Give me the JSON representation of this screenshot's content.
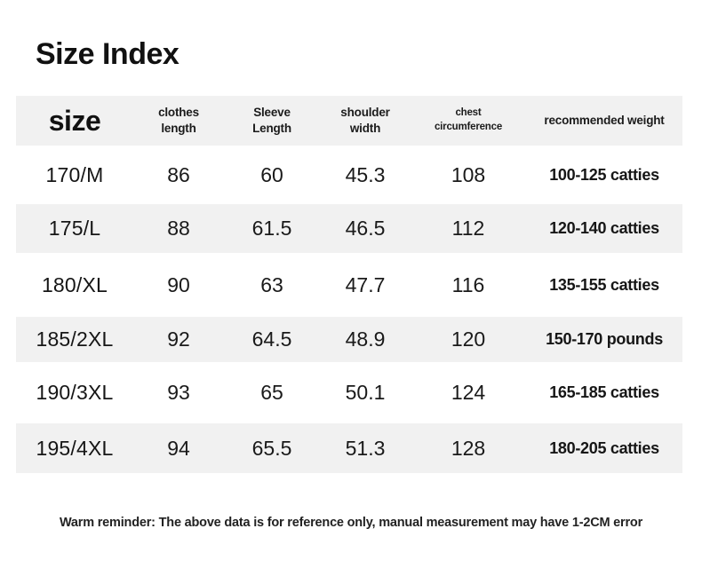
{
  "page": {
    "title": "Size Index"
  },
  "table": {
    "header": {
      "size_label": "size",
      "columns": [
        "clothes\nlength",
        "Sleeve\nLength",
        "shoulder\nwidth",
        "chest\ncircumference",
        "recommended weight"
      ]
    },
    "rows": [
      {
        "size": "170/M",
        "clothes_length": "86",
        "sleeve_length": "60",
        "shoulder_width": "45.3",
        "chest_circumference": "108",
        "recommended_weight": "100-125 catties"
      },
      {
        "size": "175/L",
        "clothes_length": "88",
        "sleeve_length": "61.5",
        "shoulder_width": "46.5",
        "chest_circumference": "112",
        "recommended_weight": "120-140 catties"
      },
      {
        "size": "180/XL",
        "clothes_length": "90",
        "sleeve_length": "63",
        "shoulder_width": "47.7",
        "chest_circumference": "116",
        "recommended_weight": "135-155 catties"
      },
      {
        "size": "185/2XL",
        "clothes_length": "92",
        "sleeve_length": "64.5",
        "shoulder_width": "48.9",
        "chest_circumference": "120",
        "recommended_weight": "150-170 pounds"
      },
      {
        "size": "190/3XL",
        "clothes_length": "93",
        "sleeve_length": "65",
        "shoulder_width": "50.1",
        "chest_circumference": "124",
        "recommended_weight": "165-185 catties"
      },
      {
        "size": "195/4XL",
        "clothes_length": "94",
        "sleeve_length": "65.5",
        "shoulder_width": "51.3",
        "chest_circumference": "128",
        "recommended_weight": "180-205 catties"
      }
    ]
  },
  "footer": {
    "note": "Warm reminder: The above data is for reference only, manual measurement may have 1-2CM error",
    "colors": {
      "band_gray": "#f1f1f1",
      "text_dark": "#141414"
    }
  }
}
